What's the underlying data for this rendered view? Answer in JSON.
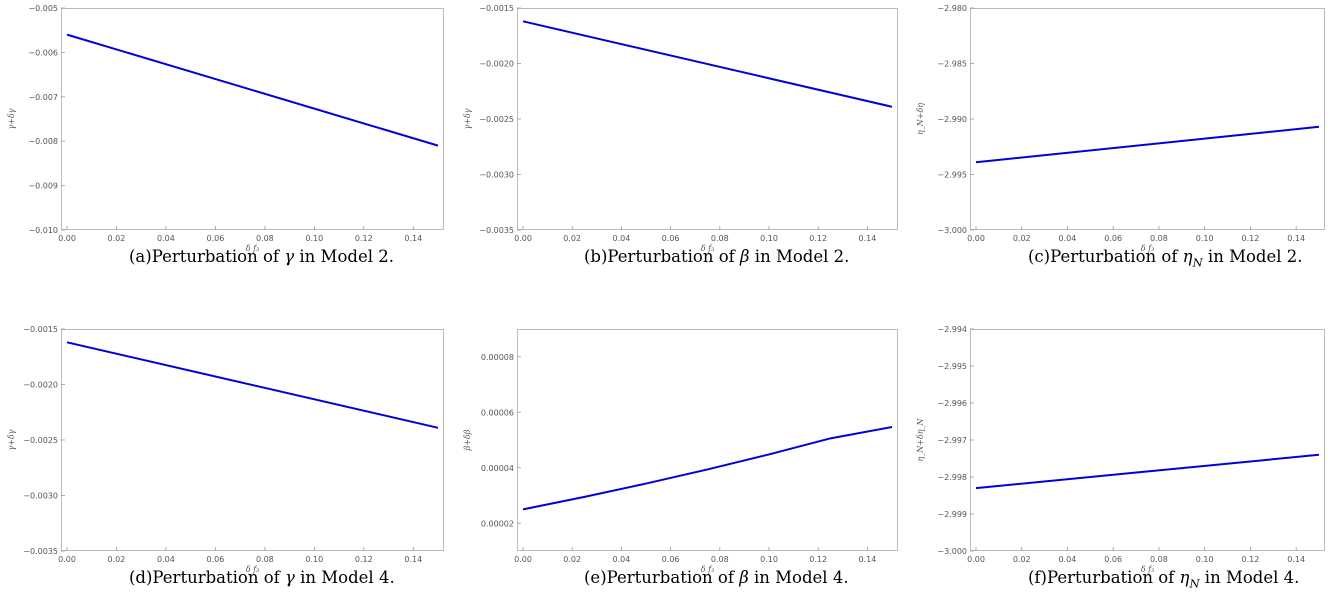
{
  "colors": {
    "line": "#0000dd",
    "frame": "#bbbbbb",
    "text": "#555555"
  },
  "panels": [
    {
      "caption": "(a)Perturbation of γ in Model 2.",
      "chart_data": {
        "type": "line",
        "xlabel": "δ f₃",
        "ylabel": "γ+δγ",
        "xlim": [
          0,
          0.15
        ],
        "ylim": [
          -0.01,
          -0.005
        ],
        "xticks": [
          "0.00",
          "0.02",
          "0.04",
          "0.06",
          "0.08",
          "0.10",
          "0.12",
          "0.14"
        ],
        "yticks": [
          "-0.010",
          "-0.009",
          "-0.008",
          "-0.007",
          "-0.006",
          "-0.005"
        ],
        "series": [
          {
            "x": [
              0,
              0.15
            ],
            "y": [
              -0.0056,
              -0.0081
            ]
          }
        ],
        "grid": false
      }
    },
    {
      "caption": "(b)Perturbation of β in Model 2.",
      "chart_data": {
        "type": "line",
        "xlabel": "δ f₃",
        "ylabel": "γ+δγ",
        "xlim": [
          0,
          0.15
        ],
        "ylim": [
          -0.0035,
          -0.0015
        ],
        "xticks": [
          "0.00",
          "0.02",
          "0.04",
          "0.06",
          "0.08",
          "0.10",
          "0.12",
          "0.14"
        ],
        "yticks": [
          "-0.0035",
          "-0.0030",
          "-0.0025",
          "-0.0020",
          "-0.0015"
        ],
        "series": [
          {
            "x": [
              0,
              0.15
            ],
            "y": [
              -0.00162,
              -0.00239
            ]
          }
        ],
        "grid": false
      }
    },
    {
      "caption": "(c)Perturbation of η_N in Model 2.",
      "chart_data": {
        "type": "line",
        "xlabel": "δ f₃",
        "ylabel": "η_N+δη",
        "xlim": [
          0,
          0.15
        ],
        "ylim": [
          -3.0,
          -2.98
        ],
        "xticks": [
          "0.00",
          "0.02",
          "0.04",
          "0.06",
          "0.08",
          "0.10",
          "0.12",
          "0.14"
        ],
        "yticks": [
          "-3.000",
          "-2.995",
          "-2.990",
          "-2.985",
          "-2.980"
        ],
        "series": [
          {
            "x": [
              0,
              0.15
            ],
            "y": [
              -2.9939,
              -2.9907
            ]
          }
        ],
        "grid": false
      }
    },
    {
      "caption": "(d)Perturbation of γ in Model 4.",
      "chart_data": {
        "type": "line",
        "xlabel": "δ f₃",
        "ylabel": "γ+δγ",
        "xlim": [
          0,
          0.15
        ],
        "ylim": [
          -0.0035,
          -0.0015
        ],
        "xticks": [
          "0.00",
          "0.02",
          "0.04",
          "0.06",
          "0.08",
          "0.10",
          "0.12",
          "0.14"
        ],
        "yticks": [
          "-0.0035",
          "-0.0030",
          "-0.0025",
          "-0.0020",
          "-0.0015"
        ],
        "series": [
          {
            "x": [
              0,
              0.15
            ],
            "y": [
              -0.00162,
              -0.00239
            ]
          }
        ],
        "grid": false
      }
    },
    {
      "caption": "(e)Perturbation of β in Model 4.",
      "chart_data": {
        "type": "line",
        "xlabel": "δ f₃",
        "ylabel": "β+δβ",
        "xlim": [
          0,
          0.15
        ],
        "ylim": [
          1e-05,
          9e-05
        ],
        "xticks": [
          "0.00",
          "0.02",
          "0.04",
          "0.06",
          "0.08",
          "0.10",
          "0.12",
          "0.14"
        ],
        "yticks": [
          "0.00002",
          "0.00004",
          "0.00006",
          "0.00008"
        ],
        "ytick_values": [
          2e-05,
          4e-05,
          6e-05,
          8e-05
        ],
        "series": [
          {
            "x": [
              0,
              0.025,
              0.05,
              0.075,
              0.1,
              0.125,
              0.15
            ],
            "y": [
              2.5e-05,
              2.95e-05,
              3.43e-05,
              3.94e-05,
              4.48e-05,
              5.06e-05,
              5.47e-05
            ]
          }
        ],
        "grid": false
      }
    },
    {
      "caption": "(f)Perturbation of η_N in Model 4.",
      "chart_data": {
        "type": "line",
        "xlabel": "δ f₃",
        "ylabel": "η_N+δη_N",
        "xlim": [
          0,
          0.15
        ],
        "ylim": [
          -3.0,
          -2.994
        ],
        "xticks": [
          "0.00",
          "0.02",
          "0.04",
          "0.06",
          "0.08",
          "0.10",
          "0.12",
          "0.14"
        ],
        "yticks": [
          "-3.000",
          "-2.999",
          "-2.998",
          "-2.997",
          "-2.996",
          "-2.995",
          "-2.994"
        ],
        "series": [
          {
            "x": [
              0,
              0.15
            ],
            "y": [
              -2.9983,
              -2.9974
            ]
          }
        ],
        "grid": false
      }
    }
  ]
}
